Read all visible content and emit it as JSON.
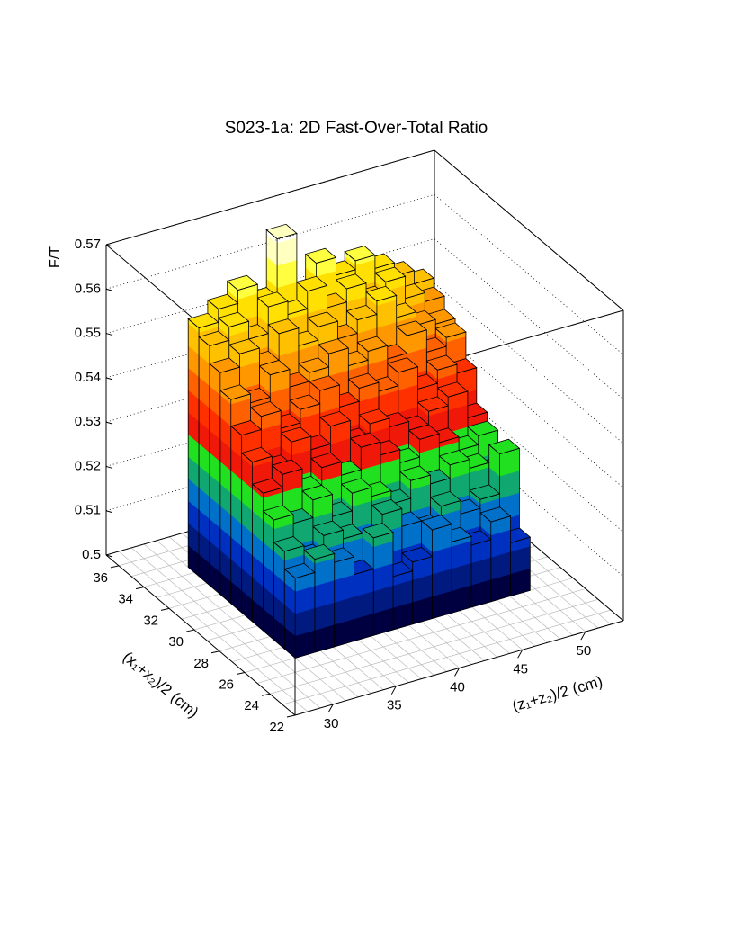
{
  "chart_data": {
    "type": "lego",
    "title": "S023-1a: 2D Fast-Over-Total Ratio",
    "xlabel": "(z₁+z₂)/2 (cm)",
    "ylabel": "(x₁+x₂)/2 (cm)",
    "zlabel": "F/T",
    "xlim": [
      27,
      53
    ],
    "ylim": [
      22,
      37
    ],
    "zlim": [
      0.5,
      0.57
    ],
    "xticks": [
      30,
      35,
      40,
      45,
      50
    ],
    "yticks": [
      22,
      24,
      26,
      28,
      30,
      32,
      34,
      36
    ],
    "zticks": [
      0.5,
      0.51,
      0.52,
      0.53,
      0.54,
      0.55,
      0.56,
      0.57
    ],
    "xbins": [
      31,
      32.55,
      34.1,
      35.65,
      37.2,
      38.75,
      40.3,
      41.85,
      43.4,
      44.95,
      46.5,
      48.05,
      49.6
    ],
    "ybins": [
      26,
      26.85,
      27.7,
      28.55,
      29.4,
      30.25,
      31.1,
      31.95,
      32.8,
      33.65,
      34.5
    ],
    "z": [
      [
        0.518,
        0.521,
        0.519,
        0.515,
        0.522,
        0.512,
        0.514,
        0.52,
        0.516,
        0.514,
        0.518,
        0.512
      ],
      [
        0.522,
        0.519,
        0.523,
        0.521,
        0.517,
        0.524,
        0.52,
        0.518,
        0.522,
        0.519,
        0.521,
        0.53
      ],
      [
        0.527,
        0.525,
        0.529,
        0.524,
        0.528,
        0.526,
        0.523,
        0.527,
        0.525,
        0.528,
        0.526,
        0.524
      ],
      [
        0.531,
        0.534,
        0.529,
        0.533,
        0.53,
        0.535,
        0.532,
        0.529,
        0.533,
        0.531,
        0.528,
        0.53
      ],
      [
        0.536,
        0.533,
        0.538,
        0.535,
        0.539,
        0.534,
        0.537,
        0.535,
        0.533,
        0.536,
        0.538,
        0.532
      ],
      [
        0.54,
        0.543,
        0.539,
        0.542,
        0.545,
        0.54,
        0.543,
        0.541,
        0.544,
        0.539,
        0.542,
        0.54
      ],
      [
        0.546,
        0.544,
        0.549,
        0.545,
        0.547,
        0.55,
        0.546,
        0.548,
        0.545,
        0.549,
        0.544,
        0.546
      ],
      [
        0.55,
        0.553,
        0.549,
        0.555,
        0.551,
        0.554,
        0.55,
        0.553,
        0.556,
        0.551,
        0.548,
        0.547
      ],
      [
        0.554,
        0.557,
        0.553,
        0.559,
        0.556,
        0.56,
        0.555,
        0.558,
        0.554,
        0.557,
        0.552,
        0.55
      ],
      [
        0.556,
        0.559,
        0.562,
        0.558,
        0.571,
        0.557,
        0.563,
        0.559,
        0.561,
        0.558,
        0.555,
        0.552
      ]
    ],
    "palette": [
      "#000040",
      "#001a80",
      "#0030c0",
      "#0070c8",
      "#10a870",
      "#20e020",
      "#f01808",
      "#ff3000",
      "#ff6000",
      "#ff9800",
      "#ffc000",
      "#ffe000",
      "#ffff40",
      "#ffffc0"
    ],
    "grid": true
  }
}
